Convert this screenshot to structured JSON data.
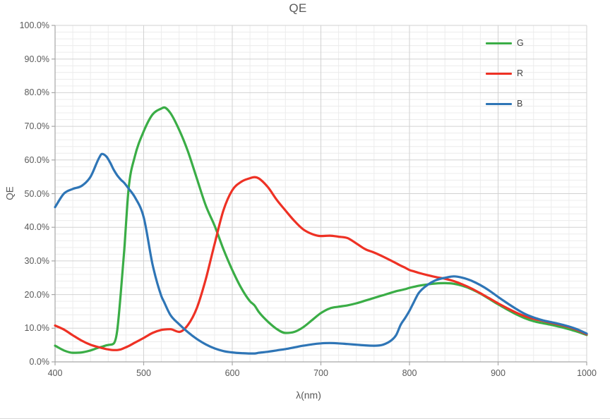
{
  "styles": {
    "background": "#ffffff",
    "grid_minor": "#ececec",
    "grid_major": "#d2d2d2",
    "axis": "#a6a6a6",
    "text": "#595959"
  },
  "chart_data": {
    "type": "line",
    "title": "QE",
    "xlabel": "λ(nm)",
    "ylabel": "QE",
    "x_min": 400,
    "x_max": 1000,
    "x_major_step": 100,
    "x_minor_step": 20,
    "y_min": 0,
    "y_max": 100,
    "y_major_step": 10,
    "y_minor_step": 2,
    "grid": "major+minor",
    "legend_position": "top-right-inside",
    "x_tick_labels": [
      "400",
      "500",
      "600",
      "700",
      "800",
      "900",
      "1000"
    ],
    "y_tick_labels": [
      "100.0%",
      "90.0%",
      "80.0%",
      "70.0%",
      "60.0%",
      "50.0%",
      "40.0%",
      "30.0%",
      "20.0%",
      "10.0%",
      "0.0%"
    ],
    "x": [
      400,
      410,
      420,
      430,
      440,
      450,
      453,
      458,
      462,
      466,
      470,
      474,
      478,
      483,
      490,
      500,
      510,
      520,
      523,
      530,
      540,
      550,
      560,
      570,
      580,
      590,
      600,
      610,
      620,
      625,
      630,
      640,
      650,
      660,
      670,
      680,
      690,
      700,
      710,
      720,
      730,
      740,
      750,
      760,
      770,
      780,
      785,
      790,
      795,
      800,
      805,
      810,
      820,
      830,
      840,
      850,
      860,
      870,
      880,
      890,
      900,
      910,
      920,
      930,
      940,
      950,
      960,
      970,
      980,
      990,
      1000
    ],
    "series": [
      {
        "name": "G",
        "color": "#3aad46",
        "values": [
          4.8,
          3.4,
          2.7,
          2.8,
          3.4,
          4.3,
          4.5,
          4.9,
          5.1,
          5.4,
          9,
          20,
          33,
          51.5,
          61,
          68.5,
          73.5,
          75.3,
          75.6,
          74,
          69,
          62.5,
          54.5,
          46.5,
          40.5,
          33.5,
          27.3,
          22,
          18,
          16.8,
          14.8,
          12,
          9.8,
          8.6,
          8.9,
          10.3,
          12.4,
          14.5,
          15.9,
          16.4,
          16.8,
          17.4,
          18.2,
          19.0,
          19.8,
          20.6,
          21.0,
          21.3,
          21.6,
          22.0,
          22.3,
          22.6,
          23.0,
          23.3,
          23.4,
          23.2,
          22.6,
          21.6,
          20.3,
          18.7,
          17.1,
          15.6,
          14.2,
          13.0,
          12.1,
          11.5,
          11.0,
          10.4,
          9.7,
          8.9,
          8.0
        ]
      },
      {
        "name": "R",
        "color": "#ee3124",
        "values": [
          10.8,
          9.6,
          7.9,
          6.3,
          5.1,
          4.3,
          4.1,
          3.8,
          3.6,
          3.5,
          3.5,
          3.7,
          4.1,
          4.7,
          5.7,
          7.1,
          8.6,
          9.5,
          9.6,
          9.7,
          8.9,
          11.0,
          16.0,
          24.5,
          35.0,
          45.0,
          51.0,
          53.5,
          54.6,
          54.9,
          54.5,
          52.0,
          48.2,
          45.0,
          41.9,
          39.4,
          38.0,
          37.4,
          37.5,
          37.2,
          36.8,
          35.2,
          33.5,
          32.5,
          31.3,
          30.0,
          29.3,
          28.6,
          28.0,
          27.3,
          26.9,
          26.5,
          25.8,
          25.2,
          24.7,
          24.0,
          23.0,
          21.8,
          20.4,
          18.9,
          17.4,
          16.0,
          14.7,
          13.6,
          12.8,
          12.2,
          11.6,
          11.0,
          10.3,
          9.4,
          8.2
        ]
      },
      {
        "name": "B",
        "color": "#2e75b6",
        "values": [
          46.0,
          50.0,
          51.4,
          52.3,
          55.0,
          60.8,
          61.8,
          61.0,
          59.3,
          57.2,
          55.5,
          54.2,
          53.2,
          51.5,
          49.0,
          43.0,
          29.0,
          19.5,
          17.8,
          14.0,
          11.2,
          8.8,
          6.8,
          5.2,
          4.0,
          3.2,
          2.8,
          2.6,
          2.5,
          2.5,
          2.7,
          3.0,
          3.4,
          3.8,
          4.3,
          4.8,
          5.2,
          5.5,
          5.6,
          5.5,
          5.3,
          5.1,
          4.9,
          4.8,
          5.1,
          6.5,
          8.0,
          11.0,
          13.0,
          15.2,
          17.8,
          20.3,
          22.8,
          24.3,
          25.0,
          25.4,
          25.0,
          24.1,
          22.8,
          21.2,
          19.3,
          17.5,
          15.8,
          14.3,
          13.2,
          12.4,
          11.8,
          11.2,
          10.5,
          9.6,
          8.4
        ]
      }
    ]
  }
}
